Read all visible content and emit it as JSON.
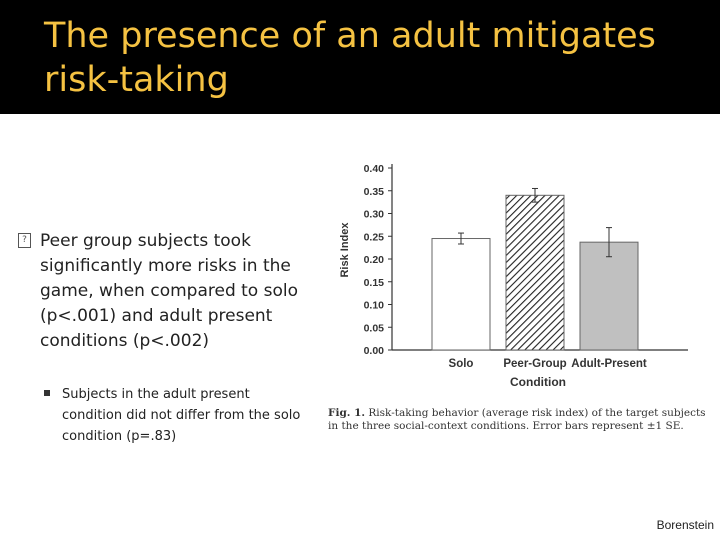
{
  "slide": {
    "title": "The presence of an adult mitigates risk-taking",
    "bullet_main": "Peer group subjects took significantly more risks in the game, when compared to solo (p<.001) and adult present conditions (p<.002)",
    "bullet_sub": "Subjects in the adult present condition did not differ from the solo condition (p=.83)",
    "credit": "Borenstein"
  },
  "figure": {
    "caption_label": "Fig. 1.",
    "caption_text": "Risk-taking behavior (average risk index) of the target subjects in the three social-context conditions. Error bars represent ±1 SE."
  },
  "chart_data": {
    "type": "bar",
    "xlabel": "Condition",
    "ylabel": "Risk Index",
    "ylim": [
      0,
      0.4
    ],
    "yticks": [
      "0.00",
      "0.05",
      "0.10",
      "0.15",
      "0.20",
      "0.25",
      "0.30",
      "0.35",
      "0.40"
    ],
    "categories": [
      "Solo",
      "Peer-Group",
      "Adult-Present"
    ],
    "values": [
      0.245,
      0.34,
      0.237
    ],
    "errors": [
      0.012,
      0.015,
      0.032
    ],
    "fills": [
      "#ffffff",
      "hatch",
      "#c0c0c0"
    ],
    "grid": false
  }
}
